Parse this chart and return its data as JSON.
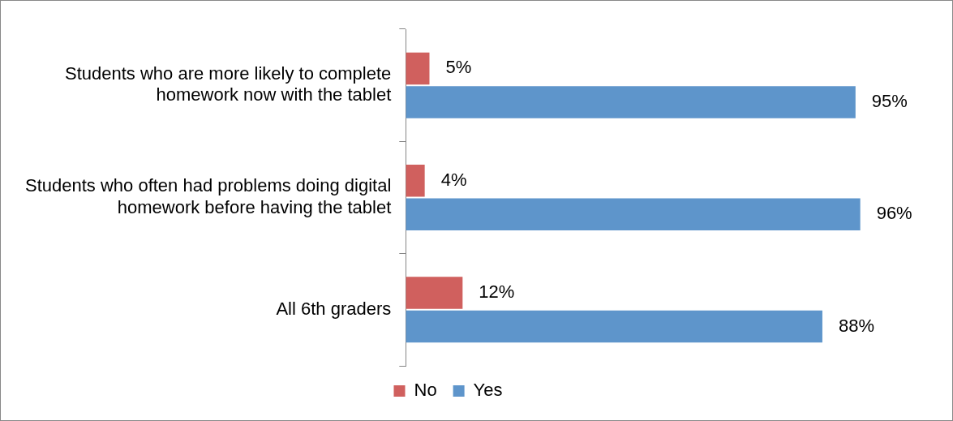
{
  "chart_data": {
    "type": "bar",
    "orientation": "horizontal",
    "categories": [
      "Students who are more likely to complete homework now with the tablet",
      "Students who often had problems doing digital homework before having the tablet",
      "All 6th graders"
    ],
    "series": [
      {
        "name": "No",
        "color": "#d0605e",
        "values": [
          5,
          4,
          12
        ],
        "value_labels": [
          "5%",
          "4%",
          "12%"
        ]
      },
      {
        "name": "Yes",
        "color": "#5e95cb",
        "values": [
          95,
          96,
          88
        ],
        "value_labels": [
          "95%",
          "96%",
          "88%"
        ]
      }
    ],
    "tick_labels": "y",
    "legend": "bottom"
  }
}
